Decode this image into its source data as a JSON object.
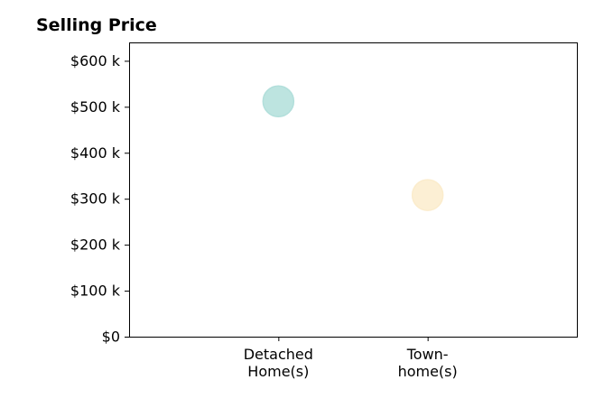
{
  "chart_data": {
    "type": "scatter",
    "title": "Selling Price",
    "categories": [
      [
        "Detached",
        "Home(s)"
      ],
      [
        "Town-",
        "home(s)"
      ]
    ],
    "points": [
      {
        "category_index": 0,
        "value": 512000,
        "color": "#b2dfdb"
      },
      {
        "category_index": 1,
        "value": 308000,
        "color": "#fbeccc"
      }
    ],
    "y_ticks": [
      {
        "value": 0,
        "label": "$0"
      },
      {
        "value": 100000,
        "label": "$100 k"
      },
      {
        "value": 200000,
        "label": "$200 k"
      },
      {
        "value": 300000,
        "label": "$300 k"
      },
      {
        "value": 400000,
        "label": "$400 k"
      },
      {
        "value": 500000,
        "label": "$500 k"
      },
      {
        "value": 600000,
        "label": "$600 k"
      }
    ],
    "ylim": [
      0,
      640000
    ],
    "xlim": [
      -1,
      2
    ],
    "xlabel": "",
    "ylabel": "",
    "grid": false,
    "legend": "none"
  }
}
